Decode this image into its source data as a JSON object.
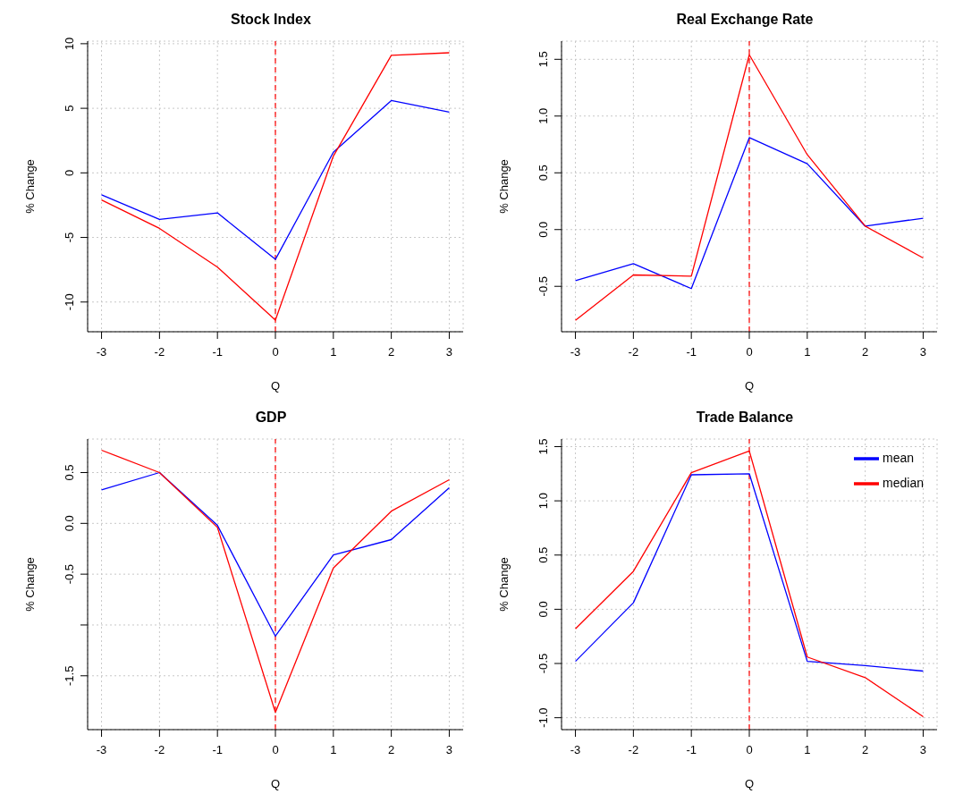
{
  "chart_data": [
    {
      "type": "line",
      "title": "Stock Index",
      "xlabel": "Q",
      "ylabel": "% Change",
      "x": [
        -3,
        -2,
        -1,
        0,
        1,
        2,
        3
      ],
      "xlim": [
        -3.24,
        3.24
      ],
      "xticks": [
        -3,
        -2,
        -1,
        0,
        1,
        2,
        3
      ],
      "ylim": [
        -12.3,
        10.2
      ],
      "yticks": [
        -10,
        -5,
        0,
        5,
        10
      ],
      "grid": true,
      "legend": false,
      "line_style": "solid",
      "series": [
        {
          "color": "#0000ff",
          "values": [
            -1.7,
            -3.6,
            -3.1,
            -6.7,
            1.6,
            5.6,
            4.7
          ]
        },
        {
          "color": "#ff0000",
          "values": [
            -2.1,
            -4.3,
            -7.3,
            -11.4,
            1.3,
            9.1,
            9.3
          ]
        }
      ],
      "ref_lines": [
        {
          "axis": "x",
          "value": 0,
          "color": "#ff0000",
          "line_style": "dashed"
        }
      ]
    },
    {
      "type": "line",
      "title": "Real Exchange Rate",
      "xlabel": "Q",
      "ylabel": "% Change",
      "x": [
        -3,
        -2,
        -1,
        0,
        1,
        2,
        3
      ],
      "xlim": [
        -3.24,
        3.24
      ],
      "xticks": [
        -3,
        -2,
        -1,
        0,
        1,
        2,
        3
      ],
      "ylim": [
        -0.9,
        1.66
      ],
      "yticks": [
        {
          "value": -0.5,
          "label": "-0.5"
        },
        {
          "value": 0,
          "label": "0.0"
        },
        {
          "value": 0.5,
          "label": "0.5"
        },
        {
          "value": 1,
          "label": "1.0"
        },
        {
          "value": 1.5,
          "label": "1.5"
        }
      ],
      "grid": true,
      "legend": false,
      "line_style": "solid",
      "series": [
        {
          "color": "#0000ff",
          "values": [
            -0.45,
            -0.3,
            -0.52,
            0.81,
            0.58,
            0.03,
            0.1
          ]
        },
        {
          "color": "#ff0000",
          "values": [
            -0.8,
            -0.4,
            -0.41,
            1.54,
            0.66,
            0.03,
            -0.25
          ]
        }
      ],
      "ref_lines": [
        {
          "axis": "x",
          "value": 0,
          "color": "#ff0000",
          "line_style": "dashed"
        }
      ]
    },
    {
      "type": "line",
      "title": "GDP",
      "xlabel": "Q",
      "ylabel": "% Change",
      "x": [
        -3,
        -2,
        -1,
        0,
        1,
        2,
        3
      ],
      "xlim": [
        -3.24,
        3.24
      ],
      "xticks": [
        -3,
        -2,
        -1,
        0,
        1,
        2,
        3
      ],
      "ylim": [
        -2.03,
        0.83
      ],
      "yticks": [
        {
          "value": -1.5,
          "label": "-1.5"
        },
        {
          "value": -1,
          "label": null
        },
        {
          "value": -0.5,
          "label": "-0.5"
        },
        {
          "value": 0,
          "label": "0.0"
        },
        {
          "value": 0.5,
          "label": "0.5"
        }
      ],
      "grid": true,
      "legend": false,
      "line_style": "solid",
      "series": [
        {
          "color": "#0000ff",
          "values": [
            0.33,
            0.5,
            -0.02,
            -1.11,
            -0.31,
            -0.16,
            0.35
          ]
        },
        {
          "color": "#ff0000",
          "values": [
            0.72,
            0.5,
            -0.04,
            -1.86,
            -0.44,
            0.12,
            0.43
          ]
        }
      ],
      "ref_lines": [
        {
          "axis": "x",
          "value": 0,
          "color": "#ff0000",
          "line_style": "dashed"
        }
      ]
    },
    {
      "type": "line",
      "title": "Trade Balance",
      "xlabel": "Q",
      "ylabel": "% Change",
      "x": [
        -3,
        -2,
        -1,
        0,
        1,
        2,
        3
      ],
      "xlim": [
        -3.24,
        3.24
      ],
      "xticks": [
        -3,
        -2,
        -1,
        0,
        1,
        2,
        3
      ],
      "ylim": [
        -1.11,
        1.57
      ],
      "yticks": [
        {
          "value": -1,
          "label": "-1.0"
        },
        {
          "value": -0.5,
          "label": "-0.5"
        },
        {
          "value": 0,
          "label": "0.0"
        },
        {
          "value": 0.5,
          "label": "0.5"
        },
        {
          "value": 1,
          "label": "1.0"
        },
        {
          "value": 1.5,
          "label": "1.5"
        }
      ],
      "grid": true,
      "legend": "top right",
      "line_style": "solid",
      "series": [
        {
          "name": "mean",
          "color": "#0000ff",
          "values": [
            -0.48,
            0.06,
            1.24,
            1.25,
            -0.48,
            -0.52,
            -0.57
          ]
        },
        {
          "name": "median",
          "color": "#ff0000",
          "values": [
            -0.18,
            0.35,
            1.26,
            1.46,
            -0.44,
            -0.63,
            -0.99
          ]
        }
      ],
      "ref_lines": [
        {
          "axis": "x",
          "value": 0,
          "color": "#ff0000",
          "line_style": "dashed"
        }
      ]
    }
  ]
}
